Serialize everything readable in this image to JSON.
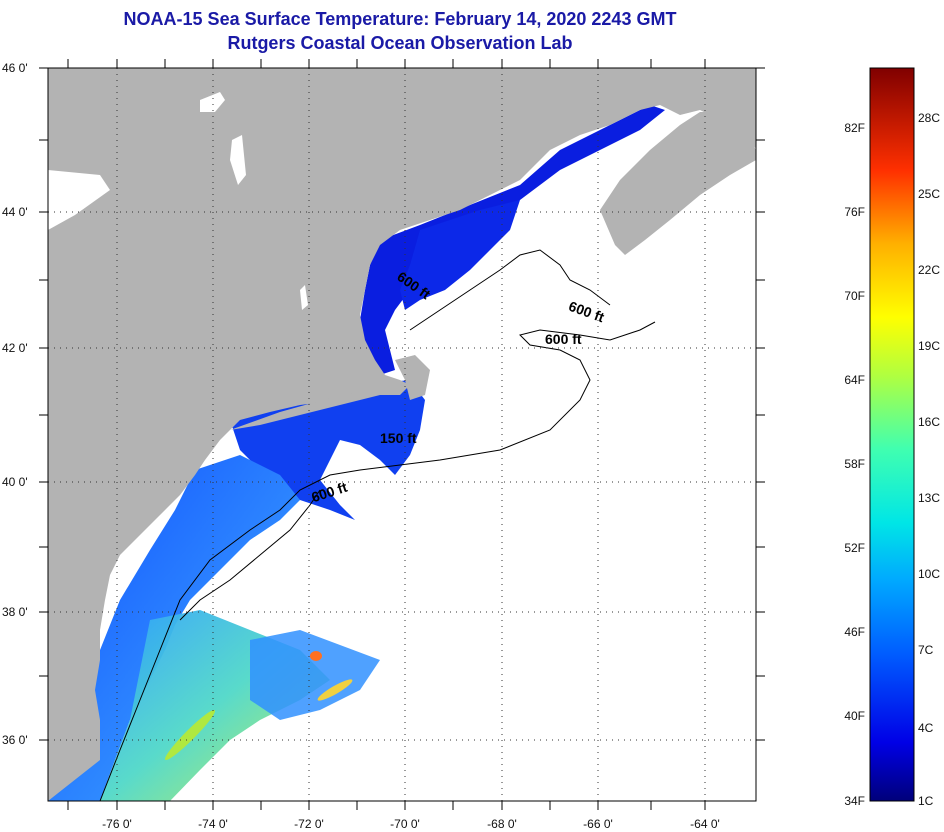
{
  "title_line1": "NOAA-15 Sea Surface Temperature:  February 14, 2020 2243 GMT",
  "title_line2": "Rutgers Coastal Ocean Observation Lab",
  "axes": {
    "lon_labels": [
      "-76 0'",
      "-74 0'",
      "-72 0'",
      "-70 0'",
      "-68 0'",
      "-66 0'",
      "-64 0'"
    ],
    "lat_labels": [
      "46 0'",
      "44 0'",
      "42 0'",
      "40 0'",
      "38 0'",
      "36 0'"
    ]
  },
  "contours": [
    {
      "label": "600 ft"
    },
    {
      "label": "600 ft"
    },
    {
      "label": "600 ft"
    },
    {
      "label": "150 ft"
    },
    {
      "label": "600 ft"
    }
  ],
  "colorbar": {
    "fahrenheit_labels": [
      "82F",
      "76F",
      "70F",
      "64F",
      "58F",
      "52F",
      "46F",
      "40F",
      "34F"
    ],
    "celsius_labels": [
      "28C",
      "25C",
      "22C",
      "19C",
      "16C",
      "13C",
      "10C",
      "7C",
      "4C",
      "1C"
    ]
  },
  "colors": {
    "land": "#b3b3b3",
    "ocean_missing": "#ffffff",
    "cold": "#0000c8",
    "title": "#1a1aa6"
  }
}
